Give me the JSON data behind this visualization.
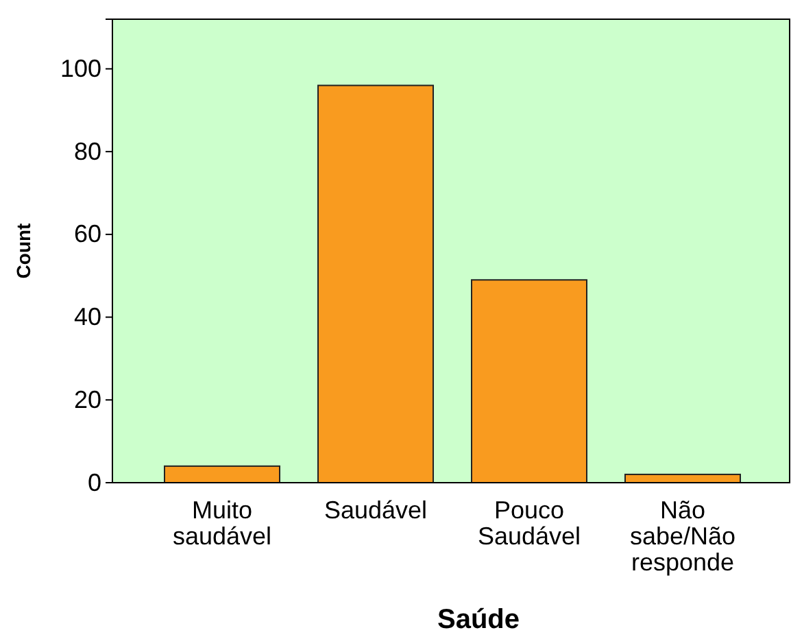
{
  "chart_data": {
    "type": "bar",
    "xlabel": "Saúde",
    "ylabel": "Count",
    "categories": [
      "Muito saudável",
      "Saudável",
      "Pouco Saudável",
      "Não sabe/Não responde"
    ],
    "values": [
      4,
      96,
      49,
      2
    ],
    "color": "#f99b1f",
    "ylim": [
      0,
      112
    ],
    "yticks": [
      0,
      20,
      40,
      60,
      80,
      100
    ],
    "grid": false
  }
}
